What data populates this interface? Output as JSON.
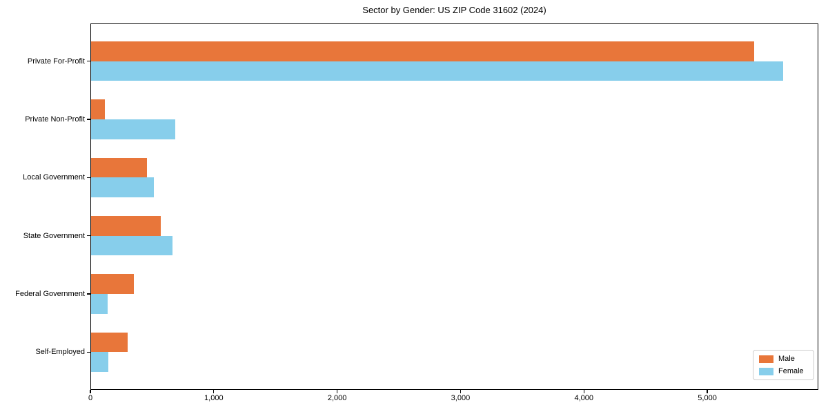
{
  "chart_data": {
    "type": "bar",
    "orientation": "horizontal",
    "title": "Sector by Gender: US ZIP Code 31602 (2024)",
    "categories": [
      "Private For-Profit",
      "Private Non-Profit",
      "Local Government",
      "State Government",
      "Federal Government",
      "Self-Employed"
    ],
    "series": [
      {
        "name": "Male",
        "color": "#e8763a",
        "values": [
          5380,
          120,
          460,
          570,
          355,
          300
        ]
      },
      {
        "name": "Female",
        "color": "#87ceeb",
        "values": [
          5615,
          690,
          515,
          665,
          140,
          145
        ]
      }
    ],
    "xlabel": "",
    "ylabel": "",
    "xlim": [
      0,
      5900
    ],
    "x_ticks": [
      "0",
      "1,000",
      "2,000",
      "3,000",
      "4,000",
      "5,000"
    ],
    "x_tick_values": [
      0,
      1000,
      2000,
      3000,
      4000,
      5000
    ],
    "grid": false,
    "legend_position": "lower right",
    "background_color": "#ffffff",
    "text_color": "#000000"
  }
}
